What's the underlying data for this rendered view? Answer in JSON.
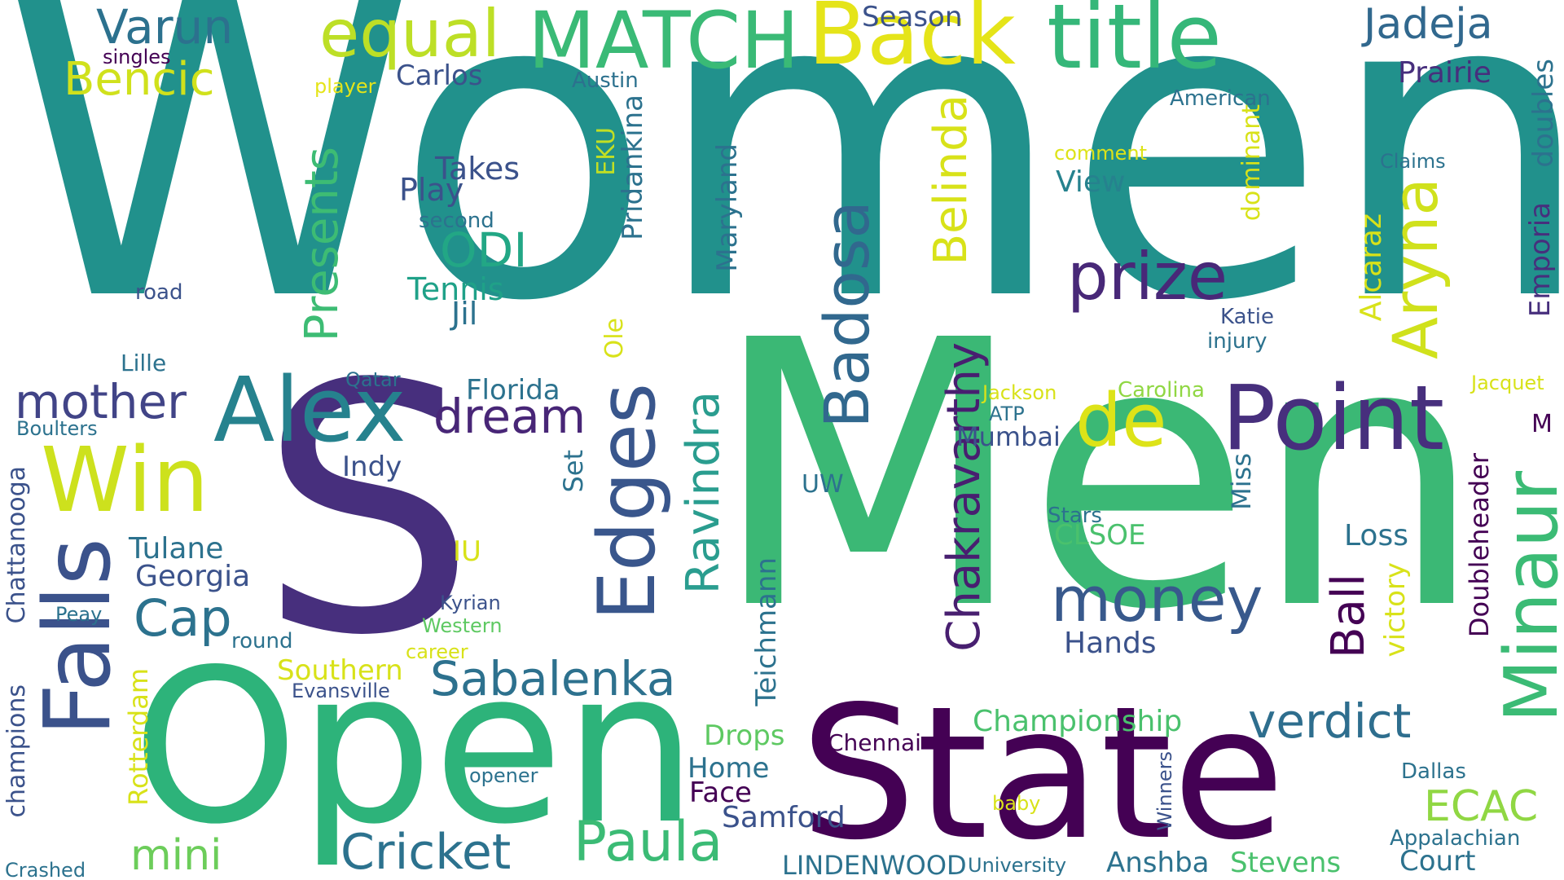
{
  "words": [
    {
      "text": "Women",
      "color": "#21918c"
    },
    {
      "text": "Men",
      "color": "#3bb875"
    },
    {
      "text": "S",
      "color": "#472f7d"
    },
    {
      "text": "Open",
      "color": "#2db37a"
    },
    {
      "text": "State",
      "color": "#440154"
    },
    {
      "text": "Back",
      "color": "#e5e419"
    },
    {
      "text": "title",
      "color": "#35b779"
    },
    {
      "text": "MATCH",
      "color": "#3aba76"
    },
    {
      "text": "equal",
      "color": "#bddf26"
    },
    {
      "text": "Varun",
      "color": "#2c718e"
    },
    {
      "text": "Bencic",
      "color": "#d0e11c"
    },
    {
      "text": "singles",
      "color": "#440154"
    },
    {
      "text": "player",
      "color": "#e5e419"
    },
    {
      "text": "Carlos",
      "color": "#3b528b"
    },
    {
      "text": "Season",
      "color": "#3b528b"
    },
    {
      "text": "Austin",
      "color": "#2c718e"
    },
    {
      "text": "Jadeja",
      "color": "#31688e"
    },
    {
      "text": "Prairie",
      "color": "#472f7d"
    },
    {
      "text": "American",
      "color": "#2c728e"
    },
    {
      "text": "Win",
      "color": "#cde11d"
    },
    {
      "text": "Alex",
      "color": "#26828e"
    },
    {
      "text": "mother",
      "color": "#414487"
    },
    {
      "text": "Falls",
      "color": "#3b528b"
    },
    {
      "text": "Point",
      "color": "#472f7d"
    },
    {
      "text": "de",
      "color": "#dde318"
    },
    {
      "text": "prize",
      "color": "#482878"
    },
    {
      "text": "money",
      "color": "#38598c"
    },
    {
      "text": "Badosa",
      "color": "#31688e"
    },
    {
      "text": "Belinda",
      "color": "#d8e219"
    },
    {
      "text": "Aryna",
      "color": "#d0e11c"
    },
    {
      "text": "Minaur",
      "color": "#3bbb75"
    },
    {
      "text": "Edges",
      "color": "#39568c"
    },
    {
      "text": "Presents",
      "color": "#3dbc74"
    },
    {
      "text": "Ravindra",
      "color": "#2a9d8f"
    },
    {
      "text": "Chakravarthy",
      "color": "#481f70"
    },
    {
      "text": "dream",
      "color": "#482677"
    },
    {
      "text": "Sabalenka",
      "color": "#2d718e"
    },
    {
      "text": "verdict",
      "color": "#2e6e8e"
    },
    {
      "text": "Paula",
      "color": "#3bbb75"
    },
    {
      "text": "Cricket",
      "color": "#2c728e"
    },
    {
      "text": "mini",
      "color": "#6ccd5a"
    },
    {
      "text": "Cap",
      "color": "#2c728e"
    },
    {
      "text": "ODI",
      "color": "#22a785"
    },
    {
      "text": "Tennis",
      "color": "#1fa188"
    },
    {
      "text": "Jil",
      "color": "#2c728e"
    },
    {
      "text": "Takes",
      "color": "#3b528b"
    },
    {
      "text": "Play",
      "color": "#3b528b"
    },
    {
      "text": "second",
      "color": "#2c728e"
    },
    {
      "text": "road",
      "color": "#3b528b"
    },
    {
      "text": "Lille",
      "color": "#2c728e"
    },
    {
      "text": "Qatar",
      "color": "#2c728e"
    },
    {
      "text": "Boulters",
      "color": "#2c728e"
    },
    {
      "text": "EKU",
      "color": "#c2df23"
    },
    {
      "text": "Pridankina",
      "color": "#2c728e"
    },
    {
      "text": "Maryland",
      "color": "#2c728e"
    },
    {
      "text": "comment",
      "color": "#dde318"
    },
    {
      "text": "View",
      "color": "#26828e"
    },
    {
      "text": "Claims",
      "color": "#2c728e"
    },
    {
      "text": "doubles",
      "color": "#2c728e"
    },
    {
      "text": "dominant",
      "color": "#d8e219"
    },
    {
      "text": "Katie",
      "color": "#3b528b"
    },
    {
      "text": "injury",
      "color": "#2c728e"
    },
    {
      "text": "Emporia",
      "color": "#472f7d"
    },
    {
      "text": "Alcaraz",
      "color": "#d8e219"
    },
    {
      "text": "Ole",
      "color": "#d8e219"
    },
    {
      "text": "Florida",
      "color": "#2c728e"
    },
    {
      "text": "Indy",
      "color": "#3b528b"
    },
    {
      "text": "Set",
      "color": "#2c728e"
    },
    {
      "text": "Jackson",
      "color": "#d8e219"
    },
    {
      "text": "Carolina",
      "color": "#90d743"
    },
    {
      "text": "ATP",
      "color": "#2c728e"
    },
    {
      "text": "Mumbai",
      "color": "#3b528b"
    },
    {
      "text": "Jacquet",
      "color": "#d8e219"
    },
    {
      "text": "M",
      "color": "#440154"
    },
    {
      "text": "Miss",
      "color": "#2c728e"
    },
    {
      "text": "Doubleheader",
      "color": "#440154"
    },
    {
      "text": "UW",
      "color": "#2c728e"
    },
    {
      "text": "Stars",
      "color": "#2c728e"
    },
    {
      "text": "CLSOE",
      "color": "#4ac16d"
    },
    {
      "text": "Loss",
      "color": "#2c728e"
    },
    {
      "text": "Ball",
      "color": "#440154"
    },
    {
      "text": "victory",
      "color": "#d8e219"
    },
    {
      "text": "Hands",
      "color": "#3b528b"
    },
    {
      "text": "Teichmann",
      "color": "#2c728e"
    },
    {
      "text": "Tulane",
      "color": "#2c728e"
    },
    {
      "text": "Georgia",
      "color": "#3b528b"
    },
    {
      "text": "IU",
      "color": "#d8e219"
    },
    {
      "text": "Kyrian",
      "color": "#3b528b"
    },
    {
      "text": "Western",
      "color": "#5ec962"
    },
    {
      "text": "round",
      "color": "#2c728e"
    },
    {
      "text": "career",
      "color": "#d8e219"
    },
    {
      "text": "Peay",
      "color": "#2c728e"
    },
    {
      "text": "Chattanooga",
      "color": "#3b528b"
    },
    {
      "text": "champions",
      "color": "#3b528b"
    },
    {
      "text": "Rotterdam",
      "color": "#d8e219"
    },
    {
      "text": "Southern",
      "color": "#d8e219"
    },
    {
      "text": "Evansville",
      "color": "#3b528b"
    },
    {
      "text": "Championship",
      "color": "#4ac16d"
    },
    {
      "text": "Drops",
      "color": "#5ec962"
    },
    {
      "text": "Home",
      "color": "#2c728e"
    },
    {
      "text": "Face",
      "color": "#440154"
    },
    {
      "text": "Samford",
      "color": "#3b528b"
    },
    {
      "text": "Chennai",
      "color": "#440154"
    },
    {
      "text": "opener",
      "color": "#2c728e"
    },
    {
      "text": "ECAC",
      "color": "#90d743"
    },
    {
      "text": "Dallas",
      "color": "#2c728e"
    },
    {
      "text": "baby",
      "color": "#d8e219"
    },
    {
      "text": "Winners",
      "color": "#3b528b"
    },
    {
      "text": "Appalachian",
      "color": "#2c728e"
    },
    {
      "text": "Court",
      "color": "#2c728e"
    },
    {
      "text": "Crashed",
      "color": "#2c728e"
    },
    {
      "text": "LINDENWOOD",
      "color": "#2c728e"
    },
    {
      "text": "University",
      "color": "#2c728e"
    },
    {
      "text": "Anshba",
      "color": "#2c728e"
    },
    {
      "text": "Stevens",
      "color": "#4ac16d"
    }
  ]
}
